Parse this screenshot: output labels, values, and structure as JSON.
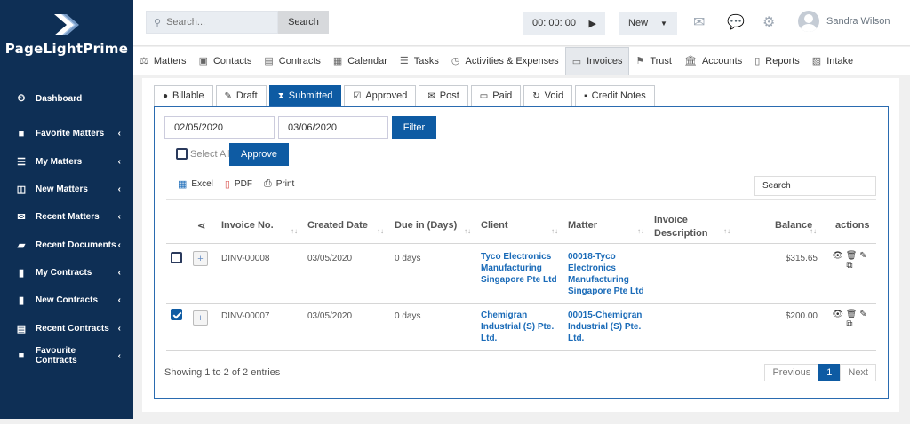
{
  "brand": {
    "name": "PageLightPrime"
  },
  "sidebar": {
    "items": [
      {
        "label": "Dashboard",
        "icon": "dashboard-icon"
      },
      {
        "label": "Favorite Matters",
        "icon": "briefcase-icon"
      },
      {
        "label": "My Matters",
        "icon": "list-icon"
      },
      {
        "label": "New Matters",
        "icon": "columns-icon"
      },
      {
        "label": "Recent Matters",
        "icon": "envelope-icon"
      },
      {
        "label": "Recent Documents",
        "icon": "folder-icon"
      },
      {
        "label": "My Contracts",
        "icon": "file-icon"
      },
      {
        "label": "New Contracts",
        "icon": "file-icon"
      },
      {
        "label": "Recent Contracts",
        "icon": "file-text-icon"
      },
      {
        "label": "Favourite Contracts",
        "icon": "briefcase-icon"
      }
    ]
  },
  "topbar": {
    "search_placeholder": "Search...",
    "search_button": "Search",
    "timer": "00: 00: 00",
    "new_button": "New",
    "user_name": "Sandra Wilson"
  },
  "mainnav": {
    "tabs": [
      {
        "label": "Matters",
        "icon": "balance-scale-icon",
        "active": false
      },
      {
        "label": "Contacts",
        "icon": "contact-card-icon",
        "active": false
      },
      {
        "label": "Contracts",
        "icon": "file-icon",
        "active": false
      },
      {
        "label": "Calendar",
        "icon": "calendar-icon",
        "active": false
      },
      {
        "label": "Tasks",
        "icon": "tasks-icon",
        "active": false
      },
      {
        "label": "Activities & Expenses",
        "icon": "clock-icon",
        "active": false
      },
      {
        "label": "Invoices",
        "icon": "invoice-icon",
        "active": true
      },
      {
        "label": "Trust",
        "icon": "flag-icon",
        "active": false
      },
      {
        "label": "Accounts",
        "icon": "bank-icon",
        "active": false
      },
      {
        "label": "Reports",
        "icon": "report-icon",
        "active": false
      },
      {
        "label": "Intake",
        "icon": "intake-icon",
        "active": false
      }
    ]
  },
  "subtabs": [
    {
      "label": "Billable",
      "icon": "user-icon",
      "active": false
    },
    {
      "label": "Draft",
      "icon": "pencil-icon",
      "active": false
    },
    {
      "label": "Submitted",
      "icon": "hourglass-icon",
      "active": true
    },
    {
      "label": "Approved",
      "icon": "check-square-icon",
      "active": false
    },
    {
      "label": "Post",
      "icon": "envelope-icon",
      "active": false
    },
    {
      "label": "Paid",
      "icon": "credit-card-icon",
      "active": false
    },
    {
      "label": "Void",
      "icon": "refresh-icon",
      "active": false
    },
    {
      "label": "Credit Notes",
      "icon": "sticky-note-icon",
      "active": false
    }
  ],
  "filters": {
    "date_from": "02/05/2020",
    "date_to": "03/06/2020",
    "filter_button": "Filter",
    "select_all": "Select All",
    "approve_button": "Approve"
  },
  "exports": {
    "excel": "Excel",
    "pdf": "PDF",
    "print": "Print"
  },
  "table": {
    "search_label": "Search",
    "headers": {
      "invoice_no": "Invoice No.",
      "created_date": "Created Date",
      "due_in": "Due in (Days)",
      "client": "Client",
      "matter": "Matter",
      "description": "Invoice Description",
      "balance": "Balance",
      "actions": "actions"
    },
    "rows": [
      {
        "checked": false,
        "invoice_no": "DINV-00008",
        "created_date": "03/05/2020",
        "due_in": "0 days",
        "client": "Tyco Electronics Manufacturing Singapore Pte Ltd",
        "matter": "00018-Tyco Electronics Manufacturing Singapore Pte Ltd",
        "description": "",
        "balance": "$315.65"
      },
      {
        "checked": true,
        "invoice_no": "DINV-00007",
        "created_date": "03/05/2020",
        "due_in": "0 days",
        "client": "Chemigran Industrial (S) Pte. Ltd.",
        "matter": "00015-Chemigran Industrial (S) Pte. Ltd.",
        "description": "",
        "balance": "$200.00"
      }
    ],
    "footer": "Showing 1 to 2 of 2 entries",
    "pager": {
      "previous": "Previous",
      "page": "1",
      "next": "Next"
    }
  }
}
